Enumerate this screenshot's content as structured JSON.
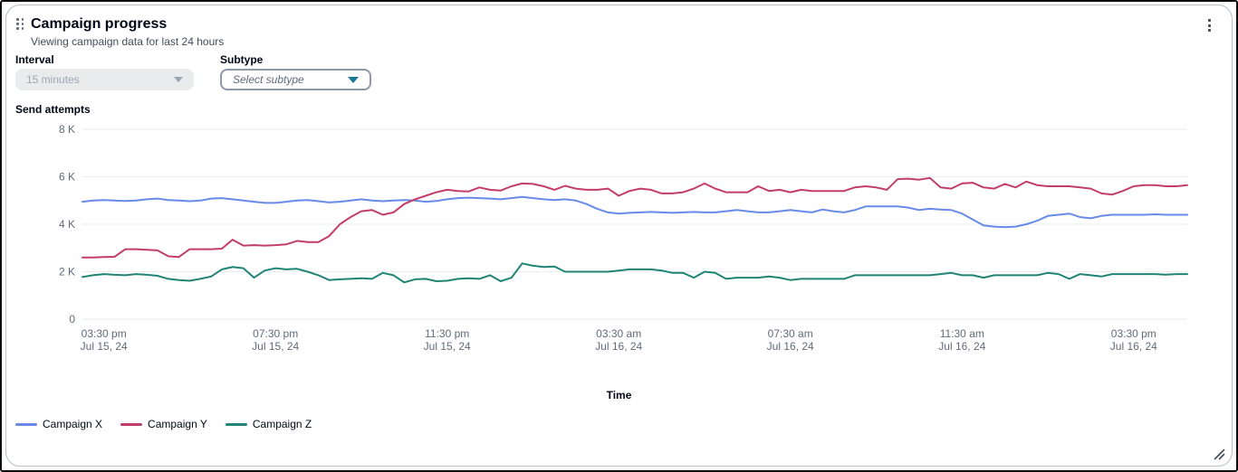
{
  "widget": {
    "title": "Campaign progress",
    "subtitle": "Viewing campaign data for last 24 hours"
  },
  "icons": {
    "drag_handle": "six-dot-grid",
    "actions_menu": "vertical-ellipsis",
    "interval_caret": "triangle-down",
    "subtype_caret": "triangle-down",
    "resize_handle": "diagonal-resize-lines"
  },
  "controls": {
    "interval": {
      "label": "Interval",
      "value": "15 minutes",
      "state": "disabled"
    },
    "subtype": {
      "label": "Subtype",
      "placeholder": "Select subtype"
    }
  },
  "colors": {
    "grid": "#e9ebed",
    "axis_text": "#5f6b7a",
    "card_border": "#b6bec9",
    "disabled_bg": "#e9ebed",
    "disabled_text": "#9ba7b6",
    "subtype_border": "#8c99a8",
    "subtype_caret": "#1a7596"
  },
  "chart_data": {
    "type": "line",
    "title": "",
    "ylabel": "Send attempts",
    "xlabel": "Time",
    "ylim": [
      0,
      8000
    ],
    "grid": true,
    "legend_position": "bottom-left",
    "interval": "15 minutes",
    "y_ticks": [
      {
        "value": 8000,
        "label": "8 K"
      },
      {
        "value": 6000,
        "label": "6 K"
      },
      {
        "value": 4000,
        "label": "4 K"
      },
      {
        "value": 2000,
        "label": "2 K"
      },
      {
        "value": 0,
        "label": "0"
      }
    ],
    "x_ticks": [
      {
        "point_index": 2,
        "time": "03:30 pm",
        "date": "Jul 15, 24"
      },
      {
        "point_index": 18,
        "time": "07:30 pm",
        "date": "Jul 15, 24"
      },
      {
        "point_index": 34,
        "time": "11:30 pm",
        "date": "Jul 15, 24"
      },
      {
        "point_index": 50,
        "time": "03:30 am",
        "date": "Jul 16, 24"
      },
      {
        "point_index": 66,
        "time": "07:30 am",
        "date": "Jul 16, 24"
      },
      {
        "point_index": 82,
        "time": "11:30 am",
        "date": "Jul 16, 24"
      },
      {
        "point_index": 98,
        "time": "03:30 pm",
        "date": "Jul 16, 24"
      }
    ],
    "series": [
      {
        "name": "Campaign X",
        "color": "#688ae8",
        "values": [
          4950,
          5000,
          5020,
          5000,
          4980,
          5000,
          5050,
          5080,
          5020,
          5000,
          4970,
          5000,
          5080,
          5100,
          5050,
          5000,
          4950,
          4900,
          4900,
          4950,
          5000,
          5020,
          4970,
          4920,
          4950,
          5000,
          5050,
          5000,
          4970,
          5000,
          5020,
          5000,
          4950,
          4980,
          5050,
          5100,
          5120,
          5100,
          5080,
          5050,
          5100,
          5150,
          5100,
          5050,
          5020,
          5050,
          5000,
          4850,
          4650,
          4500,
          4450,
          4480,
          4500,
          4520,
          4500,
          4480,
          4500,
          4520,
          4500,
          4500,
          4550,
          4600,
          4550,
          4500,
          4500,
          4550,
          4600,
          4550,
          4500,
          4620,
          4550,
          4500,
          4600,
          4750,
          4750,
          4750,
          4750,
          4700,
          4600,
          4650,
          4620,
          4600,
          4450,
          4200,
          3950,
          3900,
          3880,
          3900,
          4000,
          4150,
          4350,
          4400,
          4450,
          4300,
          4250,
          4350,
          4400,
          4400,
          4400,
          4400,
          4420,
          4400,
          4400,
          4400
        ]
      },
      {
        "name": "Campaign Y",
        "color": "#c33d69",
        "values": [
          2600,
          2600,
          2620,
          2630,
          2950,
          2950,
          2920,
          2900,
          2650,
          2620,
          2950,
          2950,
          2950,
          2970,
          3350,
          3100,
          3120,
          3100,
          3120,
          3150,
          3300,
          3250,
          3250,
          3500,
          4000,
          4300,
          4550,
          4600,
          4400,
          4500,
          4850,
          5050,
          5200,
          5350,
          5450,
          5400,
          5380,
          5550,
          5450,
          5420,
          5600,
          5720,
          5700,
          5600,
          5450,
          5620,
          5500,
          5450,
          5450,
          5500,
          5200,
          5400,
          5500,
          5450,
          5300,
          5300,
          5350,
          5500,
          5720,
          5500,
          5350,
          5350,
          5350,
          5600,
          5400,
          5450,
          5350,
          5450,
          5400,
          5400,
          5400,
          5400,
          5550,
          5600,
          5550,
          5450,
          5900,
          5920,
          5880,
          5950,
          5550,
          5500,
          5720,
          5750,
          5550,
          5500,
          5700,
          5550,
          5800,
          5650,
          5600,
          5600,
          5600,
          5550,
          5500,
          5300,
          5250,
          5400,
          5600,
          5650,
          5650,
          5600,
          5600,
          5650
        ]
      },
      {
        "name": "Campaign Z",
        "color": "#1f8476",
        "values": [
          1780,
          1850,
          1900,
          1870,
          1850,
          1900,
          1870,
          1830,
          1700,
          1650,
          1620,
          1700,
          1800,
          2100,
          2200,
          2150,
          1750,
          2050,
          2150,
          2100,
          2120,
          2000,
          1850,
          1650,
          1680,
          1700,
          1720,
          1700,
          1950,
          1850,
          1550,
          1680,
          1700,
          1600,
          1620,
          1700,
          1720,
          1700,
          1850,
          1600,
          1750,
          2350,
          2250,
          2200,
          2220,
          2000,
          2000,
          2000,
          2000,
          2000,
          2050,
          2100,
          2100,
          2100,
          2050,
          1950,
          1950,
          1750,
          2000,
          1950,
          1700,
          1750,
          1750,
          1750,
          1800,
          1750,
          1650,
          1700,
          1700,
          1700,
          1700,
          1700,
          1850,
          1850,
          1850,
          1850,
          1850,
          1850,
          1850,
          1850,
          1900,
          1950,
          1850,
          1850,
          1750,
          1850,
          1850,
          1850,
          1850,
          1850,
          1950,
          1900,
          1700,
          1900,
          1850,
          1800,
          1900,
          1900,
          1900,
          1900,
          1900,
          1880,
          1900,
          1900
        ]
      }
    ]
  }
}
